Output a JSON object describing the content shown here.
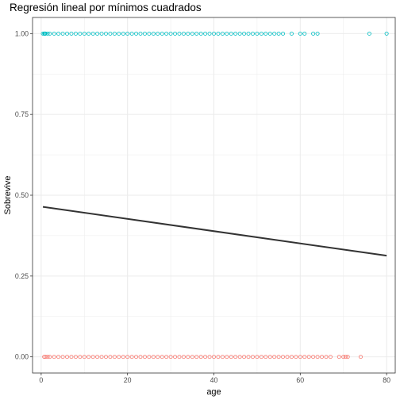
{
  "chart_data": {
    "type": "scatter",
    "title": "Regresión lineal por mínimos cuadrados",
    "xlabel": "age",
    "ylabel": "Sobrevive",
    "xlim": [
      -2,
      82
    ],
    "ylim": [
      -0.05,
      1.05
    ],
    "x_ticks": [
      0,
      20,
      40,
      60,
      80
    ],
    "x_tick_labels": [
      "0",
      "20",
      "40",
      "60",
      "80"
    ],
    "y_ticks": [
      0.0,
      0.25,
      0.5,
      0.75,
      1.0
    ],
    "y_tick_labels": [
      "0.00",
      "0.25",
      "0.50",
      "0.75",
      "1.00"
    ],
    "grid": true,
    "legend": "none",
    "colors": {
      "survived": "#00BFC4",
      "died": "#F8766D",
      "fit_line": "#333333",
      "grid": "#ebebeb",
      "panel_border": "#333333"
    },
    "series": [
      {
        "value": 1,
        "color": "#00BFC4",
        "x": [
          0.4,
          0.7,
          0.8,
          0.9,
          1,
          1.5,
          2,
          3,
          4,
          5,
          6,
          7,
          8,
          9,
          10,
          11,
          12,
          13,
          14,
          15,
          16,
          17,
          18,
          19,
          20,
          21,
          22,
          23,
          24,
          25,
          26,
          27,
          28,
          29,
          30,
          31,
          32,
          33,
          34,
          35,
          36,
          37,
          38,
          39,
          40,
          41,
          42,
          43,
          44,
          45,
          46,
          47,
          48,
          49,
          50,
          51,
          52,
          53,
          54,
          55,
          56,
          58,
          60,
          61,
          63,
          64,
          76,
          80
        ]
      },
      {
        "value": 0,
        "color": "#F8766D",
        "x": [
          0.7,
          1,
          1.5,
          2,
          3,
          4,
          5,
          6,
          7,
          8,
          9,
          10,
          11,
          12,
          13,
          14,
          15,
          16,
          17,
          18,
          19,
          20,
          21,
          22,
          23,
          24,
          25,
          26,
          27,
          28,
          29,
          30,
          31,
          32,
          33,
          34,
          35,
          36,
          37,
          38,
          39,
          40,
          41,
          42,
          43,
          44,
          45,
          46,
          47,
          48,
          49,
          50,
          51,
          52,
          53,
          54,
          55,
          56,
          57,
          58,
          59,
          60,
          61,
          62,
          63,
          64,
          65,
          66,
          67,
          69,
          70,
          70.5,
          71,
          74
        ]
      }
    ],
    "fit_line": {
      "x": [
        0.4,
        80
      ],
      "y": [
        0.464,
        0.313
      ]
    }
  }
}
